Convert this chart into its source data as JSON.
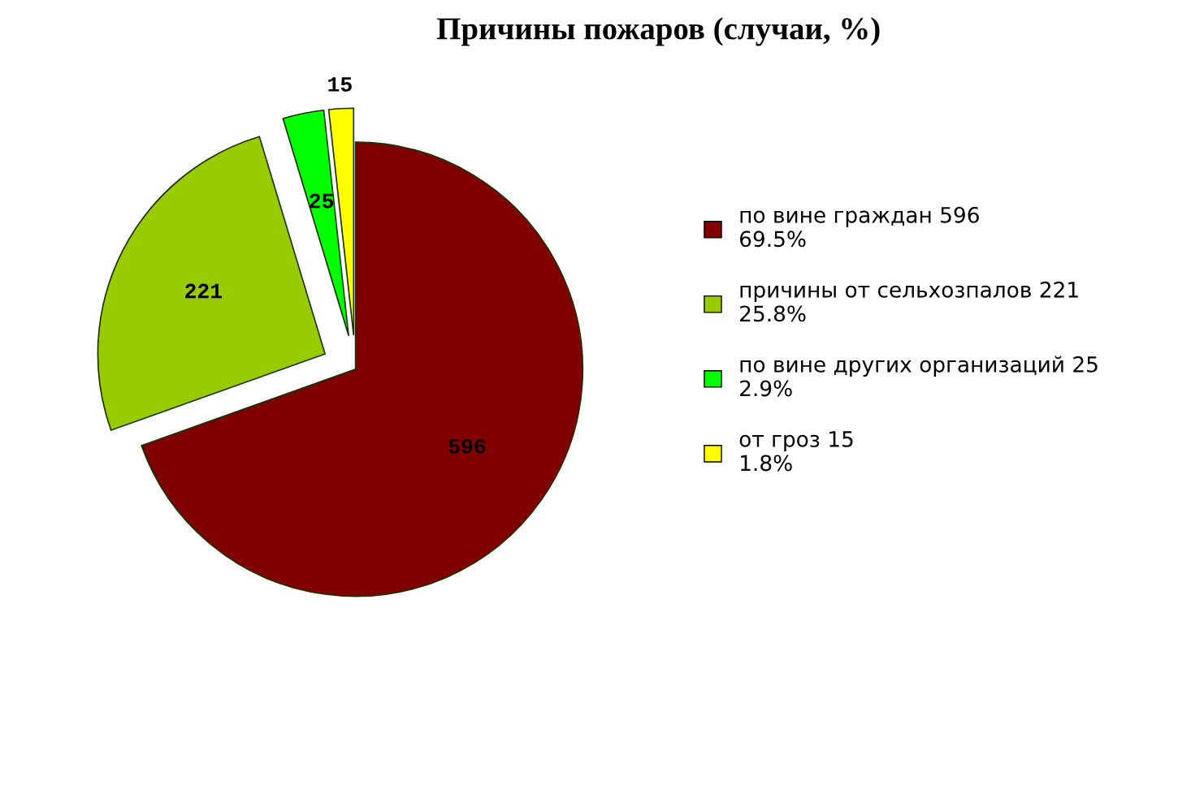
{
  "chart_data": {
    "type": "pie",
    "title": "Причины пожаров (случаи, %)",
    "categories": [
      "по вине граждан 596\n69.5%",
      "причины от сельхозпалов 221\n25.8%",
      "по вине других организаций 25\n2.9%",
      "от гроз 15\n1.8%"
    ],
    "values": [
      596,
      221,
      25,
      15
    ],
    "colors": [
      "#800000",
      "#99cc00",
      "#00ff00",
      "#ffff00"
    ],
    "data_labels": true,
    "legend": "right"
  }
}
